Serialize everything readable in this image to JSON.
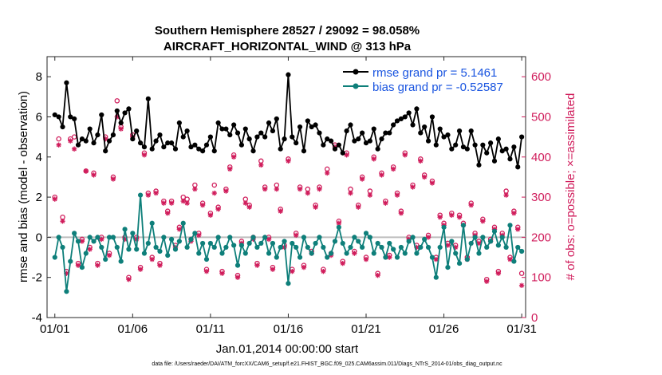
{
  "chart_data": {
    "type": "line",
    "title_line1": "Southern Hemisphere 28527 / 29092 = 98.058%",
    "title_line2": "AIRCRAFT_HORIZONTAL_WIND @ 313 hPa",
    "xlabel": "Jan.01,2014 00:00:00 start",
    "ylabel_left": "rmse and bias (model - observation)",
    "ylabel_right": "# of obs: o=possible; ×=assimilated",
    "footnote": "data file: /Users/raeder/DAI/ATM_forcXX/CAM6_setup/f.e21.FHIST_BGC.f09_025.CAM6assim.011/Diags_NTrS_2014-01/obs_diag_output.nc",
    "xlim": [
      0.5,
      31.25
    ],
    "ylim_left": [
      -4,
      9
    ],
    "ylim_right": [
      0,
      650
    ],
    "x_ticks": [
      1,
      6,
      11,
      16,
      21,
      26,
      31
    ],
    "x_tick_labels": [
      "01/01",
      "01/06",
      "01/11",
      "01/16",
      "01/21",
      "01/26",
      "01/31"
    ],
    "y_left_ticks": [
      -4,
      -2,
      0,
      2,
      4,
      6,
      8
    ],
    "y_left_tick_labels": [
      "-4",
      "-2",
      "0",
      "2",
      "4",
      "6",
      "8"
    ],
    "y_right_ticks": [
      0,
      100,
      200,
      300,
      400,
      500,
      600
    ],
    "y_right_tick_labels": [
      "0",
      "100",
      "200",
      "300",
      "400",
      "500",
      "600"
    ],
    "legend": [
      {
        "label": "rmse grand pr = 5.1461",
        "color": "#000000"
      },
      {
        "label": "bias grand pr = -0.52587",
        "color": "#0e7f7a"
      }
    ],
    "legend_text_color": "#1a55e0",
    "colors": {
      "rmse": "#000000",
      "bias": "#0e7f7a",
      "obs": "#d01c5b",
      "zero_line": "#bdbdbd"
    },
    "series": [
      {
        "name": "rmse",
        "x": [
          1.0,
          1.25,
          1.5,
          1.75,
          2.0,
          2.25,
          2.5,
          2.75,
          3.0,
          3.25,
          3.5,
          3.75,
          4.0,
          4.25,
          4.5,
          4.75,
          5.0,
          5.25,
          5.5,
          5.75,
          6.0,
          6.25,
          6.5,
          6.75,
          7.0,
          7.25,
          7.5,
          7.75,
          8.0,
          8.25,
          8.5,
          8.75,
          9.0,
          9.25,
          9.5,
          9.75,
          10.0,
          10.25,
          10.5,
          10.75,
          11.0,
          11.25,
          11.5,
          11.75,
          12.0,
          12.25,
          12.5,
          12.75,
          13.0,
          13.25,
          13.5,
          13.75,
          14.0,
          14.25,
          14.5,
          14.75,
          15.0,
          15.25,
          15.5,
          15.75,
          16.0,
          16.25,
          16.5,
          16.75,
          17.0,
          17.25,
          17.5,
          17.75,
          18.0,
          18.25,
          18.5,
          18.75,
          19.0,
          19.25,
          19.5,
          19.75,
          20.0,
          20.25,
          20.5,
          20.75,
          21.0,
          21.25,
          21.5,
          21.75,
          22.0,
          22.25,
          22.5,
          22.75,
          23.0,
          23.25,
          23.5,
          23.75,
          24.0,
          24.25,
          24.5,
          24.75,
          25.0,
          25.25,
          25.5,
          25.75,
          26.0,
          26.25,
          26.5,
          26.75,
          27.0,
          27.25,
          27.5,
          27.75,
          28.0,
          28.25,
          28.5,
          28.75,
          29.0,
          29.25,
          29.5,
          29.75,
          30.0,
          30.25,
          30.5,
          30.75,
          31.0
        ],
        "values": [
          6.1,
          6.0,
          5.5,
          7.7,
          6.0,
          5.9,
          4.6,
          4.9,
          4.8,
          5.4,
          4.7,
          5.1,
          6.1,
          4.3,
          4.8,
          5.1,
          6.3,
          5.7,
          6.2,
          6.4,
          4.9,
          5.3,
          4.7,
          4.5,
          6.9,
          4.4,
          4.8,
          5.1,
          4.5,
          4.7,
          4.7,
          4.4,
          5.7,
          5.0,
          5.3,
          4.5,
          4.6,
          4.4,
          4.3,
          4.6,
          5.0,
          4.3,
          5.7,
          5.4,
          5.4,
          5.1,
          5.6,
          5.2,
          4.6,
          5.4,
          4.9,
          4.3,
          5.0,
          5.2,
          5.0,
          5.7,
          5.3,
          5.9,
          4.4,
          4.9,
          8.1,
          5.0,
          4.7,
          5.5,
          4.3,
          5.8,
          5.5,
          5.6,
          5.2,
          4.6,
          4.9,
          4.8,
          4.4,
          4.6,
          4.2,
          5.3,
          5.6,
          4.8,
          4.9,
          5.2,
          4.7,
          4.8,
          5.4,
          4.4,
          4.9,
          5.2,
          5.2,
          5.6,
          5.8,
          5.9,
          6.0,
          6.2,
          5.6,
          6.4,
          5.2,
          5.5,
          4.8,
          6.0,
          4.6,
          5.4,
          5.0,
          5.1,
          4.4,
          4.6,
          5.3,
          4.5,
          4.4,
          5.3,
          4.6,
          3.6,
          4.6,
          4.2,
          4.7,
          3.8,
          4.9,
          4.3,
          4.4,
          3.9,
          4.5,
          3.5,
          5.0
        ]
      },
      {
        "name": "bias",
        "x": [
          1.0,
          1.25,
          1.5,
          1.75,
          2.0,
          2.25,
          2.5,
          2.75,
          3.0,
          3.25,
          3.5,
          3.75,
          4.0,
          4.25,
          4.5,
          4.75,
          5.0,
          5.25,
          5.5,
          5.75,
          6.0,
          6.25,
          6.5,
          6.75,
          7.0,
          7.25,
          7.5,
          7.75,
          8.0,
          8.25,
          8.5,
          8.75,
          9.0,
          9.25,
          9.5,
          9.75,
          10.0,
          10.25,
          10.5,
          10.75,
          11.0,
          11.25,
          11.5,
          11.75,
          12.0,
          12.25,
          12.5,
          12.75,
          13.0,
          13.25,
          13.5,
          13.75,
          14.0,
          14.25,
          14.5,
          14.75,
          15.0,
          15.25,
          15.5,
          15.75,
          16.0,
          16.25,
          16.5,
          16.75,
          17.0,
          17.25,
          17.5,
          17.75,
          18.0,
          18.25,
          18.5,
          18.75,
          19.0,
          19.25,
          19.5,
          19.75,
          20.0,
          20.25,
          20.5,
          20.75,
          21.0,
          21.25,
          21.5,
          21.75,
          22.0,
          22.25,
          22.5,
          22.75,
          23.0,
          23.25,
          23.5,
          23.75,
          24.0,
          24.25,
          24.5,
          24.75,
          25.0,
          25.25,
          25.5,
          25.75,
          26.0,
          26.25,
          26.5,
          26.75,
          27.0,
          27.25,
          27.5,
          27.75,
          28.0,
          28.25,
          28.5,
          28.75,
          29.0,
          29.25,
          29.5,
          29.75,
          30.0,
          30.25,
          30.5,
          30.75,
          31.0
        ],
        "values": [
          -1.0,
          0.0,
          -0.5,
          -2.7,
          -1.2,
          0.2,
          -0.2,
          -1.5,
          -0.8,
          0.0,
          -0.2,
          0.0,
          -0.5,
          -1.1,
          0.0,
          0.0,
          -0.5,
          -1.2,
          0.4,
          -0.6,
          0.2,
          -0.6,
          2.1,
          -0.8,
          -0.3,
          0.7,
          -0.5,
          -0.7,
          0.0,
          -0.9,
          -0.1,
          -0.6,
          -0.2,
          0.7,
          -0.5,
          -0.1,
          0.2,
          -0.8,
          -0.3,
          -1.1,
          -0.3,
          -0.5,
          0.0,
          -0.8,
          -0.5,
          0.0,
          -0.4,
          -1.4,
          -0.4,
          -0.8,
          -0.3,
          0.0,
          -0.5,
          -0.3,
          0.0,
          -0.8,
          -0.3,
          -1.0,
          -0.5,
          -0.2,
          -2.3,
          -0.3,
          -0.5,
          -1.0,
          0.0,
          -0.5,
          -0.8,
          -0.3,
          0.0,
          -0.5,
          -1.0,
          -0.8,
          -0.2,
          0.5,
          -0.3,
          -0.8,
          -0.5,
          0.0,
          -0.2,
          -0.5,
          0.2,
          0.0,
          -0.8,
          -0.3,
          -0.5,
          -1.0,
          -0.3,
          -0.6,
          -1.0,
          -0.5,
          -0.8,
          -0.2,
          0.0,
          -0.8,
          -0.5,
          -0.1,
          -0.5,
          -1.0,
          -2.0,
          -0.5,
          0.5,
          -1.5,
          -0.2,
          -0.8,
          -1.3,
          0.6,
          -1.1,
          -0.3,
          0.0,
          -0.8,
          0.0,
          -0.5,
          -0.2,
          0.3,
          -0.4,
          0.0,
          -0.5,
          0.6,
          -1.2,
          -0.5,
          -0.7
        ]
      },
      {
        "name": "obs_possible",
        "x": [
          1.0,
          1.25,
          1.5,
          1.75,
          2.0,
          2.25,
          2.5,
          2.75,
          3.0,
          3.25,
          3.5,
          3.75,
          4.0,
          4.25,
          4.5,
          4.75,
          5.0,
          5.25,
          5.5,
          5.75,
          6.0,
          6.25,
          6.5,
          6.75,
          7.0,
          7.25,
          7.5,
          7.75,
          8.0,
          8.25,
          8.5,
          8.75,
          9.0,
          9.25,
          9.5,
          9.75,
          10.0,
          10.25,
          10.5,
          10.75,
          11.0,
          11.25,
          11.5,
          11.75,
          12.0,
          12.25,
          12.5,
          12.75,
          13.0,
          13.25,
          13.5,
          13.75,
          14.0,
          14.25,
          14.5,
          14.75,
          15.0,
          15.25,
          15.5,
          15.75,
          16.0,
          16.25,
          16.5,
          16.75,
          17.0,
          17.25,
          17.5,
          17.75,
          18.0,
          18.25,
          18.5,
          18.75,
          19.0,
          19.25,
          19.5,
          19.75,
          20.0,
          20.25,
          20.5,
          20.75,
          21.0,
          21.25,
          21.5,
          21.75,
          22.0,
          22.25,
          22.5,
          22.75,
          23.0,
          23.25,
          23.5,
          23.75,
          24.0,
          24.25,
          24.5,
          24.75,
          25.0,
          25.25,
          25.5,
          25.75,
          26.0,
          26.25,
          26.5,
          26.75,
          27.0,
          27.25,
          27.5,
          27.75,
          28.0,
          28.25,
          28.5,
          28.75,
          29.0,
          29.25,
          29.5,
          29.75,
          30.0,
          30.25,
          30.5,
          30.75,
          31.0
        ],
        "values": [
          300,
          445,
          250,
          115,
          445,
          450,
          135,
          195,
          365,
          175,
          360,
          135,
          200,
          450,
          160,
          350,
          540,
          475,
          200,
          100,
          455,
          200,
          125,
          410,
          310,
          150,
          315,
          135,
          290,
          265,
          290,
          180,
          225,
          300,
          295,
          195,
          330,
          210,
          285,
          120,
          260,
          330,
          275,
          115,
          320,
          375,
          405,
          105,
          190,
          295,
          280,
          200,
          135,
          390,
          325,
          200,
          125,
          330,
          270,
          180,
          395,
          120,
          210,
          325,
          130,
          320,
          165,
          280,
          325,
          120,
          370,
          160,
          430,
          240,
          140,
          410,
          320,
          165,
          280,
          350,
          150,
          315,
          400,
          110,
          360,
          290,
          155,
          375,
          310,
          265,
          410,
          200,
          330,
          180,
          395,
          355,
          205,
          340,
          150,
          255,
          235,
          185,
          260,
          180,
          255,
          235,
          150,
          285,
          210,
          190,
          245,
          95,
          195,
          225,
          115,
          210,
          315,
          150,
          265,
          225,
          110
        ]
      },
      {
        "name": "obs_assimilated",
        "x": [
          1.0,
          1.25,
          1.5,
          1.75,
          2.0,
          2.25,
          2.5,
          2.75,
          3.0,
          3.25,
          3.5,
          3.75,
          4.0,
          4.25,
          4.5,
          4.75,
          5.0,
          5.25,
          5.5,
          5.75,
          6.0,
          6.25,
          6.5,
          6.75,
          7.0,
          7.25,
          7.5,
          7.75,
          8.0,
          8.25,
          8.5,
          8.75,
          9.0,
          9.25,
          9.5,
          9.75,
          10.0,
          10.25,
          10.5,
          10.75,
          11.0,
          11.25,
          11.5,
          11.75,
          12.0,
          12.25,
          12.5,
          12.75,
          13.0,
          13.25,
          13.5,
          13.75,
          14.0,
          14.25,
          14.5,
          14.75,
          15.0,
          15.25,
          15.5,
          15.75,
          16.0,
          16.25,
          16.5,
          16.75,
          17.0,
          17.25,
          17.5,
          17.75,
          18.0,
          18.25,
          18.5,
          18.75,
          19.0,
          19.25,
          19.5,
          19.75,
          20.0,
          20.25,
          20.5,
          20.75,
          21.0,
          21.25,
          21.5,
          21.75,
          22.0,
          22.25,
          22.5,
          22.75,
          23.0,
          23.25,
          23.5,
          23.75,
          24.0,
          24.25,
          24.5,
          24.75,
          25.0,
          25.25,
          25.5,
          25.75,
          26.0,
          26.25,
          26.5,
          26.75,
          27.0,
          27.25,
          27.5,
          27.75,
          28.0,
          28.25,
          28.5,
          28.75,
          29.0,
          29.25,
          29.5,
          29.75,
          30.0,
          30.25,
          30.5,
          30.75,
          31.0
        ],
        "values": [
          295,
          430,
          240,
          110,
          440,
          420,
          130,
          190,
          365,
          170,
          355,
          130,
          195,
          445,
          155,
          345,
          500,
          470,
          195,
          95,
          450,
          195,
          120,
          405,
          305,
          145,
          310,
          130,
          285,
          260,
          285,
          175,
          220,
          290,
          285,
          190,
          320,
          205,
          280,
          115,
          255,
          310,
          270,
          110,
          315,
          370,
          400,
          100,
          185,
          285,
          275,
          195,
          130,
          380,
          320,
          195,
          120,
          320,
          265,
          175,
          390,
          115,
          205,
          320,
          125,
          310,
          160,
          275,
          320,
          115,
          360,
          155,
          425,
          235,
          135,
          405,
          310,
          160,
          275,
          345,
          145,
          305,
          395,
          105,
          355,
          285,
          150,
          370,
          305,
          260,
          405,
          195,
          325,
          175,
          390,
          350,
          200,
          335,
          145,
          250,
          230,
          180,
          255,
          175,
          250,
          230,
          145,
          280,
          205,
          185,
          240,
          90,
          190,
          220,
          110,
          205,
          305,
          145,
          260,
          220,
          80
        ]
      }
    ]
  }
}
